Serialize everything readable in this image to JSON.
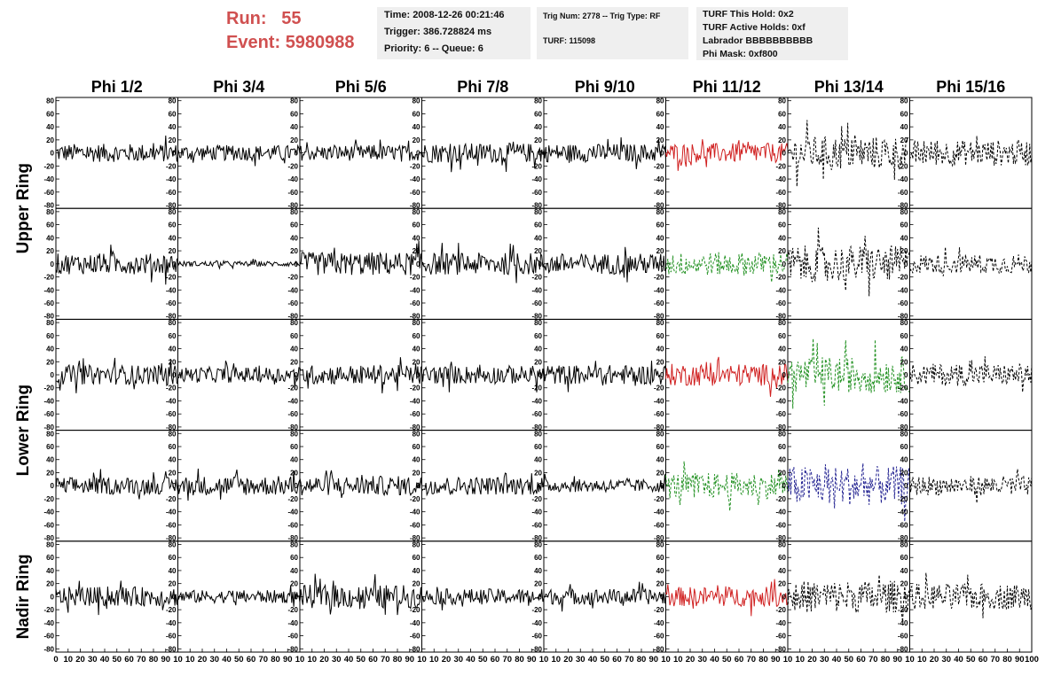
{
  "run_label": "Run:",
  "run_value": "55",
  "event_label": "Event:",
  "event_value": "5980988",
  "info1": [
    "Time: 2008-12-26 00:21:46",
    "Trigger: 386.728824 ms",
    "Priority: 6 -- Queue: 6"
  ],
  "info2": [
    "Trig Num: 2778 -- Trig Type: RF",
    "TURF: 115098"
  ],
  "info3": [
    "TURF This Hold: 0x2",
    "TURF Active Holds: 0xf",
    "Labrador BBBBBBBBBB",
    "Phi Mask: 0xf800"
  ],
  "colors": {
    "red": "#d02020",
    "green": "#209020",
    "blue": "#202090",
    "black": "#000000",
    "header_text": "#d05050",
    "box_bg": "#efefef"
  },
  "chart_data": {
    "type": "line",
    "title": "",
    "column_labels": [
      "Phi 1/2",
      "Phi 3/4",
      "Phi 5/6",
      "Phi 7/8",
      "Phi 9/10",
      "Phi 11/12",
      "Phi 13/14",
      "Phi 15/16"
    ],
    "ring_labels": [
      "Upper Ring",
      "Lower Ring",
      "Nadir Ring"
    ],
    "xlim": [
      0,
      100
    ],
    "ylim": [
      -85,
      85
    ],
    "y_ticks": [
      -80,
      -60,
      -40,
      -20,
      0,
      20,
      40,
      60,
      80
    ],
    "x_ticks": [
      0,
      10,
      20,
      30,
      40,
      50,
      60,
      70,
      80,
      90,
      100
    ],
    "x_tick_labels": [
      "0",
      "10",
      "20",
      "30",
      "40",
      "50",
      "60",
      "70",
      "80",
      "90",
      "10",
      "10",
      "20",
      "30",
      "40",
      "50",
      "60",
      "70",
      "80",
      "90",
      "10",
      "10",
      "20",
      "30",
      "40",
      "50",
      "60",
      "70",
      "80",
      "90",
      "10",
      "10",
      "20",
      "30",
      "40",
      "50",
      "60",
      "70",
      "80",
      "90",
      "10",
      "10",
      "20",
      "30",
      "40",
      "50",
      "60",
      "70",
      "80",
      "90",
      "10",
      "10",
      "20",
      "30",
      "40",
      "50",
      "60",
      "70",
      "80",
      "90",
      "10",
      "10",
      "20",
      "30",
      "40",
      "50",
      "60",
      "70",
      "80",
      "90",
      "10",
      "10",
      "20",
      "30",
      "40",
      "50",
      "60",
      "70",
      "80",
      "90",
      "100"
    ],
    "grid": false,
    "panels": [
      [
        {
          "color": "black",
          "style": "solid",
          "amp": 14
        },
        {
          "color": "black",
          "style": "solid",
          "amp": 12
        },
        {
          "color": "black",
          "style": "solid",
          "amp": 12
        },
        {
          "color": "black",
          "style": "solid",
          "amp": 15
        },
        {
          "color": "black",
          "style": "solid",
          "amp": 14
        },
        {
          "color": "red",
          "style": "solid",
          "amp": 15
        },
        {
          "color": "black",
          "style": "dashed",
          "amp": 26
        },
        {
          "color": "black",
          "style": "dashed",
          "amp": 20
        }
      ],
      [
        {
          "color": "black",
          "style": "solid",
          "amp": 16
        },
        {
          "color": "black",
          "style": "solid",
          "amp": 4
        },
        {
          "color": "black",
          "style": "solid",
          "amp": 18
        },
        {
          "color": "black",
          "style": "solid",
          "amp": 17
        },
        {
          "color": "black",
          "style": "solid",
          "amp": 16
        },
        {
          "color": "green",
          "style": "dashed",
          "amp": 18
        },
        {
          "color": "black",
          "style": "dashed",
          "amp": 28
        },
        {
          "color": "black",
          "style": "dashed",
          "amp": 15
        }
      ],
      [
        {
          "color": "black",
          "style": "solid",
          "amp": 15
        },
        {
          "color": "black",
          "style": "solid",
          "amp": 12
        },
        {
          "color": "black",
          "style": "solid",
          "amp": 15
        },
        {
          "color": "black",
          "style": "solid",
          "amp": 14
        },
        {
          "color": "black",
          "style": "solid",
          "amp": 15
        },
        {
          "color": "red",
          "style": "solid",
          "amp": 17
        },
        {
          "color": "green",
          "style": "dashed",
          "amp": 28
        },
        {
          "color": "black",
          "style": "dashed",
          "amp": 17
        }
      ],
      [
        {
          "color": "black",
          "style": "solid",
          "amp": 13
        },
        {
          "color": "black",
          "style": "solid",
          "amp": 15
        },
        {
          "color": "black",
          "style": "solid",
          "amp": 15
        },
        {
          "color": "black",
          "style": "solid",
          "amp": 14
        },
        {
          "color": "black",
          "style": "solid",
          "amp": 10
        },
        {
          "color": "green",
          "style": "dashed",
          "amp": 20
        },
        {
          "color": "blue",
          "style": "dashed",
          "amp": 30
        },
        {
          "color": "black",
          "style": "dashed",
          "amp": 15
        }
      ],
      [
        {
          "color": "black",
          "style": "solid",
          "amp": 15
        },
        {
          "color": "black",
          "style": "solid",
          "amp": 10
        },
        {
          "color": "black",
          "style": "solid",
          "amp": 18
        },
        {
          "color": "black",
          "style": "solid",
          "amp": 12
        },
        {
          "color": "black",
          "style": "solid",
          "amp": 12
        },
        {
          "color": "red",
          "style": "solid",
          "amp": 15
        },
        {
          "color": "black",
          "style": "dashed",
          "amp": 25
        },
        {
          "color": "black",
          "style": "dashed",
          "amp": 20
        }
      ]
    ]
  }
}
